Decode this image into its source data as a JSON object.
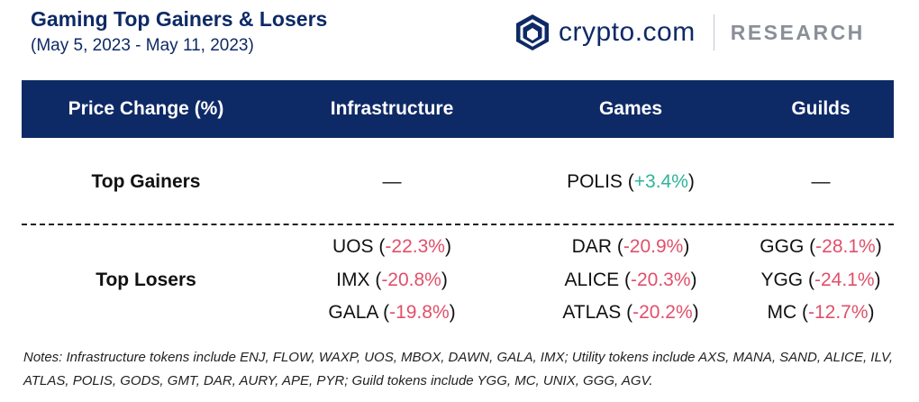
{
  "header": {
    "title": "Gaming Top Gainers & Losers",
    "subtitle": "(May 5, 2023 - May 11, 2023)",
    "brand_name": "crypto.com",
    "brand_section": "RESEARCH"
  },
  "colors": {
    "navy": "#0e2a66",
    "positive": "#2fb39a",
    "negative": "#e0506a"
  },
  "table": {
    "columns": [
      "Price Change (%)",
      "Infrastructure",
      "Games",
      "Guilds"
    ],
    "gainers": {
      "label": "Top Gainers",
      "infrastructure": "—",
      "games": {
        "token": "POLIS",
        "change": "+3.4%"
      },
      "guilds": "—"
    },
    "losers": {
      "label": "Top Losers",
      "infrastructure": [
        {
          "token": "UOS",
          "change": "-22.3%"
        },
        {
          "token": "IMX",
          "change": "-20.8%"
        },
        {
          "token": "GALA",
          "change": "-19.8%"
        }
      ],
      "games": [
        {
          "token": "DAR",
          "change": "-20.9%"
        },
        {
          "token": "ALICE",
          "change": "-20.3%"
        },
        {
          "token": "ATLAS",
          "change": "-20.2%"
        }
      ],
      "guilds": [
        {
          "token": "GGG",
          "change": "-28.1%"
        },
        {
          "token": "YGG",
          "change": "-24.1%"
        },
        {
          "token": "MC",
          "change": "-12.7%"
        }
      ]
    }
  },
  "notes": "Notes: Infrastructure tokens include ENJ, FLOW, WAXP, UOS, MBOX, DAWN, GALA, IMX; Utility tokens include AXS, MANA, SAND, ALICE, ILV, ATLAS, POLIS, GODS, GMT, DAR, AURY, APE, PYR; Guild tokens include YGG, MC, UNIX, GGG, AGV."
}
